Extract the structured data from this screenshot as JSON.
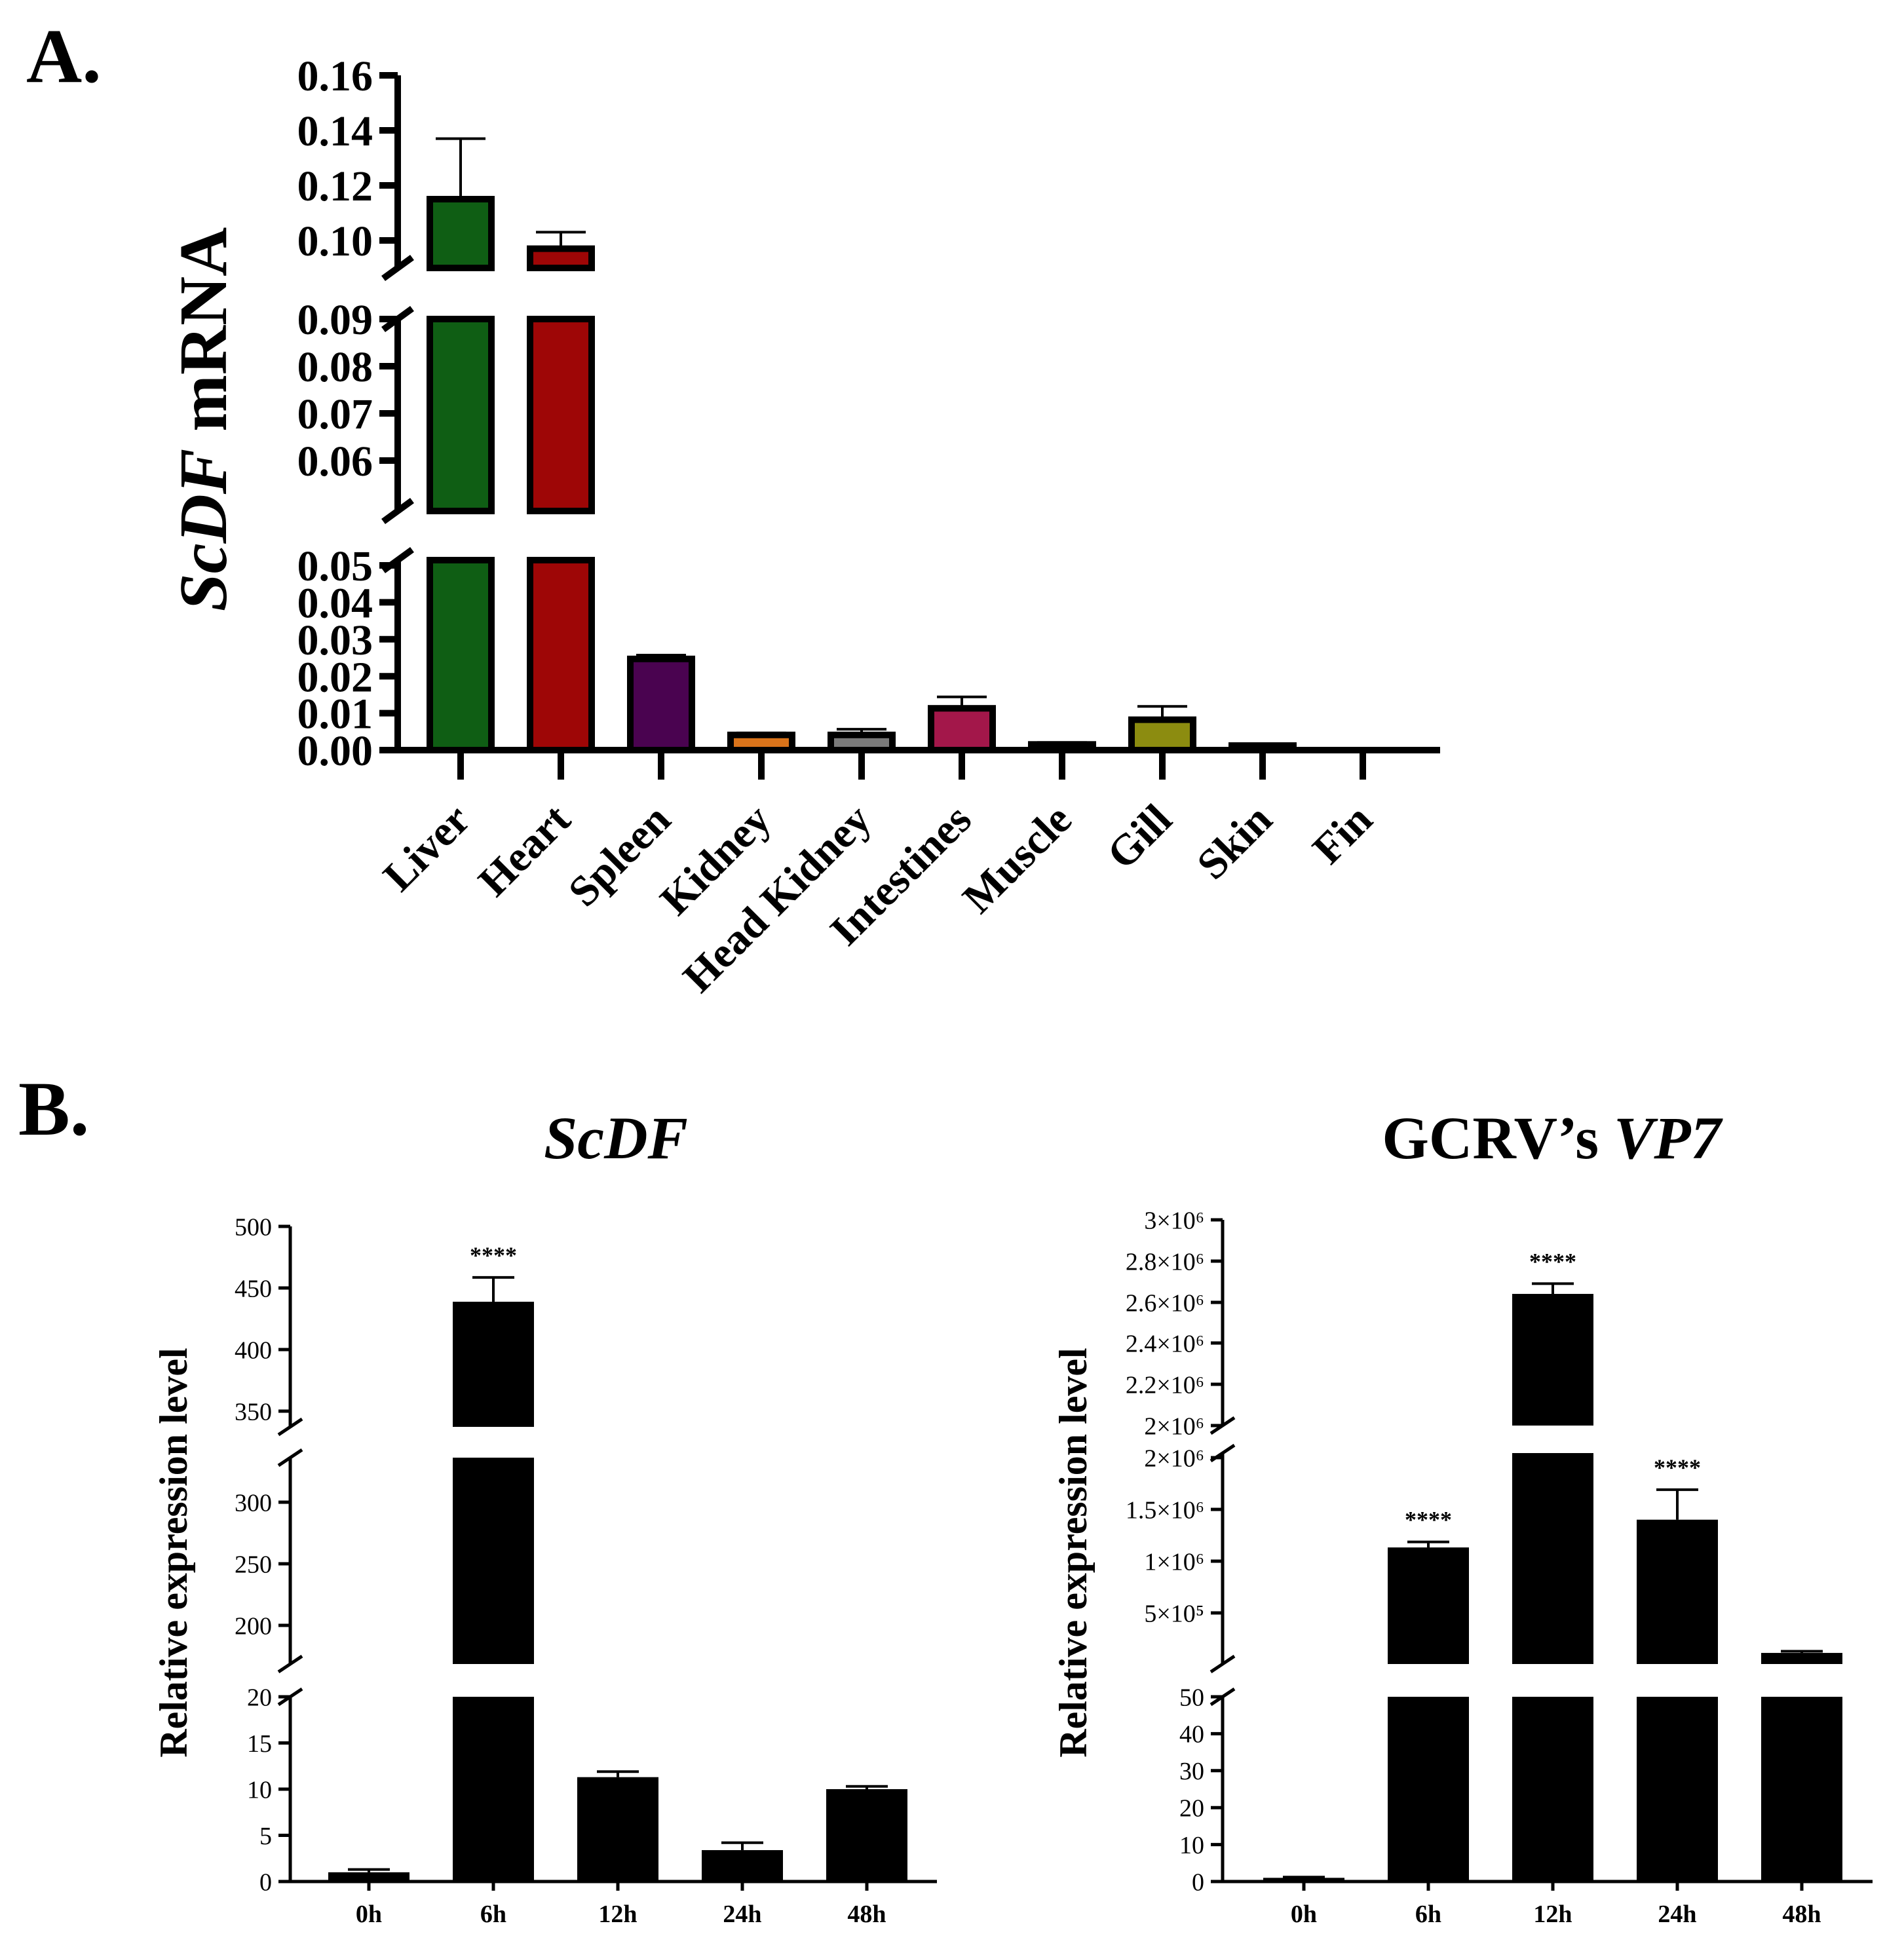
{
  "panels": {
    "a_label": "A.",
    "b_label": "B."
  },
  "chart_data": [
    {
      "type": "bar",
      "panel": "A",
      "ylabel_italic": "ScDF",
      "ylabel_rest": " mRNA",
      "categories": [
        "Liver",
        "Heart",
        "Spleen",
        "Kidney",
        "Head Kidney",
        "Intestines",
        "Muscle",
        "Gill",
        "Skin",
        "Fin"
      ],
      "values": [
        0.115,
        0.097,
        0.024,
        0.004,
        0.004,
        0.011,
        0.0015,
        0.008,
        0.0012,
        0.0
      ],
      "errors": [
        0.022,
        0.006,
        0.001,
        0.0005,
        0.0015,
        0.003,
        0.0005,
        0.0035,
        0.0003,
        0.0
      ],
      "colors": [
        "#0f5e14",
        "#9e0606",
        "#4a0350",
        "#d9731a",
        "#7a7a7a",
        "#a3174a",
        "#1a1a1a",
        "#8c8c10",
        "#1a1a1a",
        "#1a1a1a"
      ],
      "axis_segments": [
        {
          "range": [
            0.0,
            0.05
          ],
          "ticks": [
            "0.00",
            "0.01",
            "0.02",
            "0.03",
            "0.04",
            "0.05"
          ]
        },
        {
          "range": [
            0.05,
            0.09
          ],
          "ticks": [
            "0.06",
            "0.07",
            "0.08",
            "0.09"
          ]
        },
        {
          "range": [
            0.09,
            0.16
          ],
          "ticks": [
            "0.10",
            "0.12",
            "0.14",
            "0.16"
          ]
        }
      ]
    },
    {
      "type": "bar",
      "panel": "B-left",
      "title": "ScDF",
      "ylabel": "Relative expression level",
      "categories": [
        "0h",
        "6h",
        "12h",
        "24h",
        "48h"
      ],
      "values": [
        1.0,
        438,
        11.3,
        3.4,
        10.0
      ],
      "errors": [
        0.3,
        20,
        0.6,
        0.8,
        0.3
      ],
      "significance": [
        "",
        "****",
        "",
        "",
        ""
      ],
      "bar_color": "#000000",
      "axis_segments": [
        {
          "range": [
            0,
            20
          ],
          "ticks": [
            "0",
            "5",
            "10",
            "15",
            "20"
          ]
        },
        {
          "range": [
            170,
            330
          ],
          "ticks": [
            "200",
            "250",
            "300"
          ]
        },
        {
          "range": [
            335,
            500
          ],
          "ticks": [
            "350",
            "400",
            "450",
            "500"
          ]
        }
      ]
    },
    {
      "type": "bar",
      "panel": "B-right",
      "title_plain": "GCRV’s ",
      "title_italic": "VP7",
      "ylabel": "Relative expression level",
      "categories": [
        "0h",
        "6h",
        "12h",
        "24h",
        "48h"
      ],
      "values": [
        1.0,
        1150000,
        2640000,
        1400000,
        200000
      ],
      "errors": [
        0.2,
        50000,
        50000,
        270000,
        15000
      ],
      "significance": [
        "",
        "****",
        "****",
        "****",
        ""
      ],
      "bar_color": "#000000",
      "axis_segments": [
        {
          "range": [
            0,
            50
          ],
          "ticks": [
            "0",
            "10",
            "20",
            "30",
            "40",
            "50"
          ]
        },
        {
          "range": [
            0,
            2000000
          ],
          "ticks": [
            "5×10⁵",
            "1×10⁶",
            "1.5×10⁶",
            "2×10⁶"
          ]
        },
        {
          "range": [
            2000000,
            3000000
          ],
          "ticks": [
            "2×10⁶",
            "2.2×10⁶",
            "2.4×10⁶",
            "2.6×10⁶",
            "2.8×10⁶",
            "3×10⁶"
          ]
        }
      ]
    }
  ]
}
